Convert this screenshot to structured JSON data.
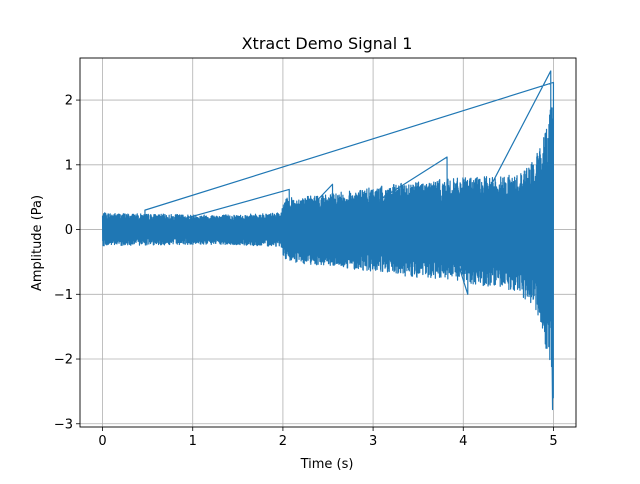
{
  "chart_data": {
    "type": "line",
    "title": "Xtract Demo Signal 1",
    "xlabel": "Time (s)",
    "ylabel": "Amplitude (Pa)",
    "xlim": [
      -0.25,
      5.25
    ],
    "ylim": [
      -3.05,
      2.65
    ],
    "xticks": [
      0,
      1,
      2,
      3,
      4,
      5
    ],
    "yticks": [
      -3,
      -2,
      -1,
      0,
      1,
      2
    ],
    "grid": true,
    "legend": "none",
    "series_color": "#1f77b4",
    "series": [
      {
        "name": "",
        "envelope_x": [
          0.0,
          0.5,
          1.0,
          1.5,
          1.98,
          2.02,
          2.5,
          3.0,
          3.5,
          4.0,
          4.3,
          4.6,
          4.8,
          4.9,
          4.97,
          5.0
        ],
        "envelope_upper": [
          0.26,
          0.24,
          0.23,
          0.23,
          0.26,
          0.48,
          0.55,
          0.65,
          0.75,
          0.8,
          0.82,
          0.85,
          1.1,
          1.5,
          2.0,
          2.42
        ],
        "envelope_lower": [
          -0.25,
          -0.24,
          -0.23,
          -0.24,
          -0.26,
          -0.5,
          -0.56,
          -0.65,
          -0.75,
          -0.82,
          -0.88,
          -0.95,
          -1.25,
          -1.7,
          -2.3,
          -2.78
        ],
        "peaks": [
          {
            "x": 0.47,
            "y": 0.3
          },
          {
            "x": 2.07,
            "y": 0.62
          },
          {
            "x": 2.55,
            "y": 0.7
          },
          {
            "x": 3.82,
            "y": 1.12
          },
          {
            "x": 4.05,
            "y": -1.0
          },
          {
            "x": 4.97,
            "y": 2.45
          },
          {
            "x": 4.99,
            "y": -2.78
          }
        ]
      }
    ]
  }
}
